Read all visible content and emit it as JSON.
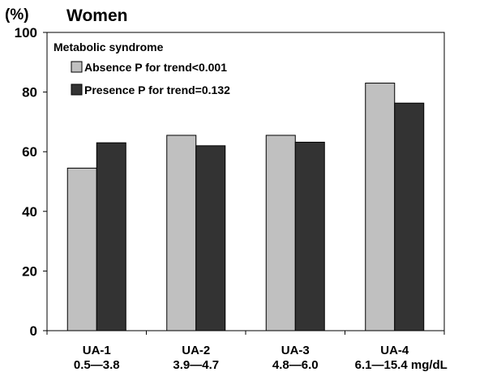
{
  "chart_data": {
    "type": "bar",
    "title": "Women",
    "ylabel": "(%)",
    "xlabel": "",
    "ylim": [
      0,
      100
    ],
    "yticks": [
      0,
      20,
      40,
      60,
      80,
      100
    ],
    "categories": [
      "UA-1",
      "UA-2",
      "UA-3",
      "UA-4"
    ],
    "category_ranges": [
      "0.5—3.8",
      "3.9—4.7",
      "4.8—6.0",
      "6.1—15.4 mg/dL"
    ],
    "legend_title": "Metabolic syndrome",
    "legend_position": "top-left",
    "grid": false,
    "series": [
      {
        "name": "Absence P for trend<0.001",
        "color": "#c0c0c0",
        "values": [
          54.5,
          65.5,
          65.5,
          83
        ]
      },
      {
        "name": "Presence P for trend=0.132",
        "color": "#333333",
        "values": [
          63,
          62,
          63.2,
          76.3
        ]
      }
    ]
  }
}
